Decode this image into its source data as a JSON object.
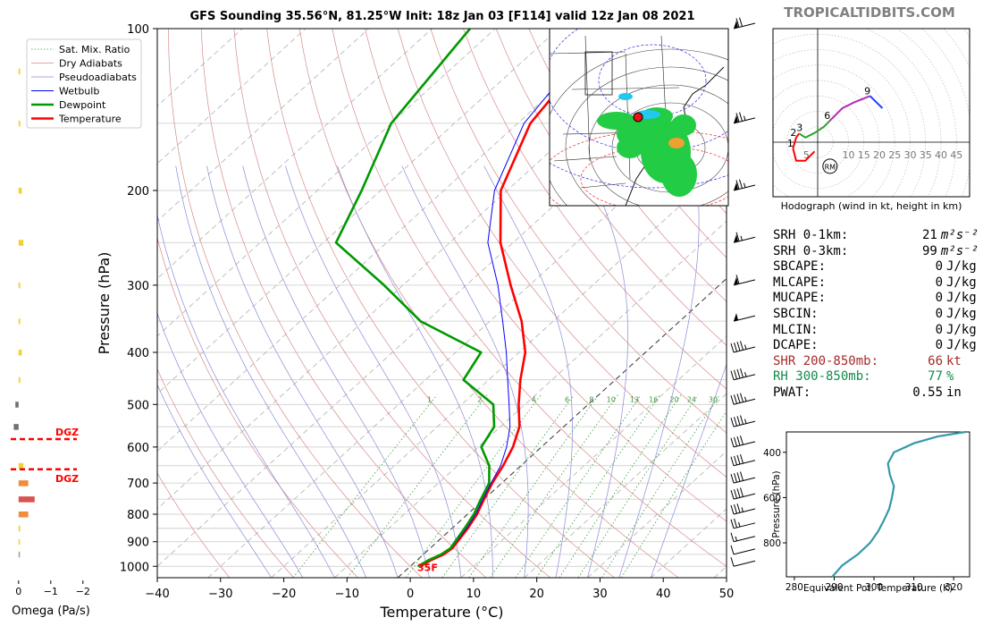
{
  "title": "GFS Sounding 35.56°N, 81.25°W Init: 18z Jan 03 [F114] valid 12z Jan 08 2021",
  "brand": "TROPICALTIDBITS.COM",
  "stats": [
    {
      "label": "SRH 0-1km:",
      "value": "21",
      "unit": "m²s⁻²",
      "color": "#000000"
    },
    {
      "label": "SRH 0-3km:",
      "value": "99",
      "unit": "m²s⁻²",
      "color": "#000000"
    },
    {
      "label": "SBCAPE:",
      "value": "0",
      "unit": "J/kg",
      "color": "#000000"
    },
    {
      "label": "MLCAPE:",
      "value": "0",
      "unit": "J/kg",
      "color": "#000000"
    },
    {
      "label": "MUCAPE:",
      "value": "0",
      "unit": "J/kg",
      "color": "#000000"
    },
    {
      "label": "SBCIN:",
      "value": "0",
      "unit": "J/kg",
      "color": "#000000"
    },
    {
      "label": "MLCIN:",
      "value": "0",
      "unit": "J/kg",
      "color": "#000000"
    },
    {
      "label": "DCAPE:",
      "value": "0",
      "unit": "J/kg",
      "color": "#000000"
    },
    {
      "label": "SHR 200-850mb:",
      "value": "66",
      "unit": "kt",
      "color": "#a52a2a"
    },
    {
      "label": "RH 300-850mb:",
      "value": "77",
      "unit": "%",
      "color": "#138a4b"
    },
    {
      "label": "PWAT:",
      "value": "0.55",
      "unit": "in",
      "color": "#000000"
    }
  ],
  "chart_data": [
    {
      "type": "line",
      "name": "skew-t",
      "xlabel": "Temperature (°C)",
      "ylabel": "Pressure (hPa)",
      "xlim": [
        -40,
        50
      ],
      "ylim": [
        1050,
        100
      ],
      "yscale": "log",
      "xticks": [
        -40,
        -30,
        -20,
        -10,
        0,
        10,
        20,
        30,
        40,
        50
      ],
      "yticks": [
        100,
        200,
        300,
        400,
        500,
        600,
        700,
        800,
        900,
        1000
      ],
      "legend": [
        "Sat. Mix. Ratio",
        "Dry Adiabats",
        "Pseudoadiabats",
        "Wetbulb",
        "Dewpoint",
        "Temperature"
      ],
      "legend_position": "top-left",
      "mixing_ratio_labels": [
        "1",
        "2",
        "4",
        "6",
        "8",
        "10",
        "13",
        "16",
        "20",
        "24",
        "30",
        "36"
      ],
      "surface_label": "35F",
      "series": [
        {
          "name": "Temperature",
          "color": "#ff0000",
          "points": [
            [
              1000,
              1.6
            ],
            [
              975,
              2.2
            ],
            [
              950,
              3.2
            ],
            [
              925,
              3.5
            ],
            [
              900,
              3.2
            ],
            [
              850,
              2.5
            ],
            [
              800,
              1.5
            ],
            [
              750,
              0.0
            ],
            [
              700,
              -1.5
            ],
            [
              650,
              -2.8
            ],
            [
              600,
              -4.5
            ],
            [
              550,
              -7.0
            ],
            [
              500,
              -11.0
            ],
            [
              450,
              -15.0
            ],
            [
              400,
              -19.0
            ],
            [
              350,
              -25.0
            ],
            [
              300,
              -33.0
            ],
            [
              250,
              -42.0
            ],
            [
              200,
              -51.0
            ],
            [
              150,
              -58.0
            ],
            [
              100,
              -62.0
            ]
          ]
        },
        {
          "name": "Wetbulb",
          "color": "#0000ff",
          "points": [
            [
              1000,
              1.4
            ],
            [
              975,
              2.0
            ],
            [
              950,
              3.0
            ],
            [
              925,
              3.3
            ],
            [
              900,
              3.0
            ],
            [
              850,
              2.3
            ],
            [
              800,
              1.3
            ],
            [
              750,
              -0.2
            ],
            [
              700,
              -1.7
            ],
            [
              650,
              -3.2
            ],
            [
              600,
              -5.5
            ],
            [
              550,
              -8.5
            ],
            [
              500,
              -12.5
            ],
            [
              450,
              -17.0
            ],
            [
              400,
              -22.0
            ],
            [
              350,
              -28.0
            ],
            [
              300,
              -35.0
            ],
            [
              250,
              -44.0
            ],
            [
              200,
              -52.0
            ],
            [
              150,
              -59.0
            ],
            [
              100,
              -63.0
            ]
          ]
        },
        {
          "name": "Dewpoint",
          "color": "#009900",
          "points": [
            [
              1000,
              1.2
            ],
            [
              975,
              1.8
            ],
            [
              950,
              2.8
            ],
            [
              925,
              3.2
            ],
            [
              900,
              2.8
            ],
            [
              850,
              2.0
            ],
            [
              800,
              1.0
            ],
            [
              750,
              -0.5
            ],
            [
              700,
              -2.0
            ],
            [
              650,
              -5.0
            ],
            [
              600,
              -9.5
            ],
            [
              550,
              -11.0
            ],
            [
              500,
              -15.0
            ],
            [
              450,
              -24.0
            ],
            [
              400,
              -26.0
            ],
            [
              350,
              -41.0
            ],
            [
              300,
              -53.0
            ],
            [
              250,
              -68.0
            ],
            [
              200,
              -73.0
            ],
            [
              150,
              -80.0
            ],
            [
              100,
              -84.0
            ]
          ]
        }
      ],
      "wind_barbs": [
        {
          "p": 1000,
          "speed": 10
        },
        {
          "p": 950,
          "speed": 10
        },
        {
          "p": 900,
          "speed": 15
        },
        {
          "p": 850,
          "speed": 25
        },
        {
          "p": 800,
          "speed": 35
        },
        {
          "p": 750,
          "speed": 40
        },
        {
          "p": 700,
          "speed": 40
        },
        {
          "p": 650,
          "speed": 40
        },
        {
          "p": 600,
          "speed": 40
        },
        {
          "p": 550,
          "speed": 45
        },
        {
          "p": 500,
          "speed": 45
        },
        {
          "p": 450,
          "speed": 45
        },
        {
          "p": 400,
          "speed": 45
        },
        {
          "p": 350,
          "speed": 50
        },
        {
          "p": 300,
          "speed": 60
        },
        {
          "p": 250,
          "speed": 65
        },
        {
          "p": 200,
          "speed": 75
        },
        {
          "p": 150,
          "speed": 75
        },
        {
          "p": 100,
          "speed": 70
        }
      ]
    },
    {
      "type": "bar",
      "name": "omega",
      "xlabel": "Omega (Pa/s)",
      "xticks": [
        0,
        -1,
        -2
      ],
      "xlim": [
        0.3,
        -2.2
      ],
      "dgz_label": "DGZ",
      "dgz_pressures": [
        580,
        660
      ],
      "bars": [
        {
          "p": 120,
          "value": -0.05,
          "color": "#f2d22e"
        },
        {
          "p": 150,
          "value": -0.05,
          "color": "#f2d22e"
        },
        {
          "p": 200,
          "value": -0.1,
          "color": "#f2d22e"
        },
        {
          "p": 250,
          "value": -0.15,
          "color": "#f2d22e"
        },
        {
          "p": 300,
          "value": -0.05,
          "color": "#f2d22e"
        },
        {
          "p": 350,
          "value": -0.05,
          "color": "#f2d22e"
        },
        {
          "p": 400,
          "value": -0.1,
          "color": "#f2d22e"
        },
        {
          "p": 450,
          "value": -0.05,
          "color": "#f2d22e"
        },
        {
          "p": 500,
          "value": 0.1,
          "color": "#707070"
        },
        {
          "p": 550,
          "value": 0.15,
          "color": "#707070"
        },
        {
          "p": 650,
          "value": -0.15,
          "color": "#f2d22e"
        },
        {
          "p": 700,
          "value": -0.3,
          "color": "#f08c3c"
        },
        {
          "p": 750,
          "value": -0.5,
          "color": "#d9534f"
        },
        {
          "p": 800,
          "value": -0.3,
          "color": "#f08c3c"
        },
        {
          "p": 850,
          "value": -0.05,
          "color": "#f2d22e"
        },
        {
          "p": 900,
          "value": -0.02,
          "color": "#f2d22e"
        },
        {
          "p": 950,
          "value": 0.0,
          "color": "#a0a0a0"
        }
      ]
    },
    {
      "type": "line",
      "name": "hodograph",
      "title": "Hodograph (wind in kt, height in km)",
      "ring_labels": [
        "5",
        "10",
        "15",
        "20",
        "25",
        "30",
        "35",
        "40",
        "45"
      ],
      "storm_motion_label": "RM",
      "storm_motion": [
        4,
        -2
      ],
      "height_labels": [
        {
          "label": "1",
          "uv": [
            -8,
            -2
          ]
        },
        {
          "label": "2",
          "uv": [
            -7,
            1.5
          ]
        },
        {
          "label": "3",
          "uv": [
            -5,
            3
          ]
        },
        {
          "label": "6",
          "uv": [
            4,
            7
          ]
        },
        {
          "label": "9",
          "uv": [
            17,
            15
          ]
        }
      ],
      "segments": [
        {
          "color": "#ff0000",
          "points": [
            [
              -8,
              -2
            ],
            [
              -7,
              -6
            ],
            [
              -4,
              -6
            ],
            [
              -1,
              -3
            ]
          ]
        },
        {
          "color": "#ff0000",
          "points": [
            [
              -8,
              -2
            ],
            [
              -7,
              1.5
            ],
            [
              -6,
              2.8
            ]
          ]
        },
        {
          "color": "#2ca02c",
          "points": [
            [
              -6,
              2.8
            ],
            [
              -4,
              1.5
            ],
            [
              -1,
              3
            ],
            [
              2,
              5
            ],
            [
              4,
              7
            ]
          ]
        },
        {
          "color": "#b32cb3",
          "points": [
            [
              4,
              7
            ],
            [
              8,
              11
            ],
            [
              12,
              13
            ],
            [
              17,
              15
            ]
          ]
        },
        {
          "color": "#1f3fff",
          "points": [
            [
              17,
              15
            ],
            [
              19,
              13
            ],
            [
              21,
              11
            ]
          ]
        }
      ]
    },
    {
      "type": "line",
      "name": "theta-e",
      "xlabel": "Equivalent Pot. Temperature (K)",
      "ylabel": "Pressure (hPa)",
      "xlim": [
        278,
        324
      ],
      "ylim": [
        950,
        310
      ],
      "xticks": [
        280,
        290,
        300,
        310,
        320
      ],
      "yticks": [
        400,
        600,
        800
      ],
      "color": "#3399aa",
      "points": [
        [
          950,
          289.5
        ],
        [
          900,
          292
        ],
        [
          850,
          296
        ],
        [
          800,
          299
        ],
        [
          750,
          301
        ],
        [
          700,
          302.5
        ],
        [
          650,
          303.8
        ],
        [
          600,
          304.5
        ],
        [
          550,
          305
        ],
        [
          500,
          304
        ],
        [
          450,
          303.5
        ],
        [
          400,
          305
        ],
        [
          360,
          310
        ],
        [
          330,
          316
        ],
        [
          310,
          323
        ]
      ]
    }
  ]
}
